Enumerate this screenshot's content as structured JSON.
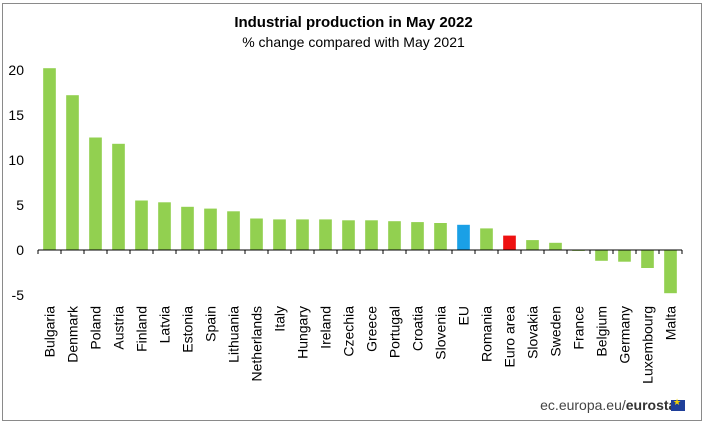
{
  "chart_data": {
    "type": "bar",
    "title": "Industrial production in May 2022",
    "subtitle": "% change compared with May 2021",
    "xlabel": "",
    "ylabel": "",
    "ylim": [
      -5,
      20
    ],
    "yticks": [
      20,
      15,
      10,
      5,
      0,
      -5
    ],
    "categories": [
      "Bulgaria",
      "Denmark",
      "Poland",
      "Austria",
      "Finland",
      "Latvia",
      "Estonia",
      "Spain",
      "Lithuania",
      "Netherlands",
      "Italy",
      "Hungary",
      "Ireland",
      "Czechia",
      "Greece",
      "Portugal",
      "Croatia",
      "Slovenia",
      "EU",
      "Romania",
      "Euro area",
      "Slovakia",
      "Sweden",
      "France",
      "Belgium",
      "Germany",
      "Luxembourg",
      "Malta"
    ],
    "values": [
      20.2,
      17.2,
      12.5,
      11.8,
      5.5,
      5.3,
      4.8,
      4.6,
      4.3,
      3.5,
      3.4,
      3.4,
      3.4,
      3.3,
      3.3,
      3.2,
      3.1,
      3.0,
      2.8,
      2.4,
      1.6,
      1.1,
      0.8,
      -0.1,
      -1.2,
      -1.3,
      -2.0,
      -4.8
    ],
    "colors": {
      "default": "#92d050",
      "EU": "#1aa0e6",
      "Euro area": "#ee1111"
    },
    "grid": false,
    "legend": "none"
  },
  "footer": {
    "source": "ec.europa.eu/",
    "brand": "eurostat"
  }
}
